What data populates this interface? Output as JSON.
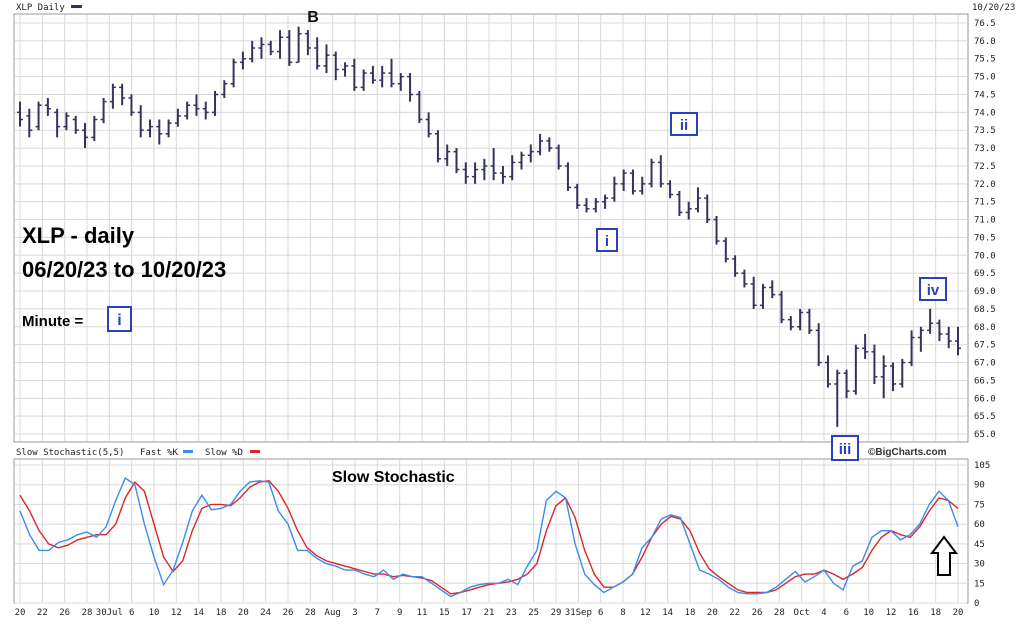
{
  "header": {
    "title": "XLP Daily",
    "date": "10/20/23",
    "stochastic_label": "Slow Stochastic(5,5)",
    "fast_label": "Fast %K",
    "slow_label": "Slow %D",
    "credit": "©BigCharts.com"
  },
  "annotations": {
    "title_line1": "XLP - daily",
    "title_line2": "06/20/23 to 10/20/23",
    "minute_label": "Minute =",
    "minute_box": "i",
    "wave_B": "B",
    "wave_i": "i",
    "wave_ii": "ii",
    "wave_iii": "iii",
    "wave_iv": "iv",
    "stoch_title": "Slow Stochastic"
  },
  "colors": {
    "bars": "#33335c",
    "fast": "#3d8bef",
    "slow": "#d9262a",
    "wave_box": "#2b3fc4",
    "grid": "#d8d8d8"
  },
  "chart_data": [
    {
      "type": "ohlc",
      "title": "XLP Daily",
      "price_range": [
        65.0,
        76.5
      ],
      "price_ticks": [
        "76.5",
        "76.0",
        "75.5",
        "75.0",
        "74.5",
        "74.0",
        "73.5",
        "73.0",
        "72.5",
        "72.0",
        "71.5",
        "71.0",
        "70.5",
        "70.0",
        "69.5",
        "69.0",
        "68.5",
        "68.0",
        "67.5",
        "67.0",
        "66.5",
        "66.0",
        "65.5",
        "65.0"
      ],
      "x_tick_labels": [
        "20",
        "22",
        "26",
        "28",
        "30Jul",
        "6",
        "10",
        "12",
        "14",
        "18",
        "20",
        "24",
        "26",
        "28",
        "Aug",
        "3",
        "7",
        "9",
        "11",
        "15",
        "17",
        "21",
        "23",
        "25",
        "29",
        "31Sep",
        "6",
        "8",
        "12",
        "14",
        "18",
        "20",
        "22",
        "26",
        "28",
        "Oct",
        "4",
        "6",
        "10",
        "12",
        "16",
        "18",
        "20"
      ],
      "grid": true,
      "bars": [
        {
          "o": 74.0,
          "h": 74.3,
          "l": 73.6,
          "c": 73.8
        },
        {
          "o": 73.9,
          "h": 74.1,
          "l": 73.3,
          "c": 73.5
        },
        {
          "o": 73.6,
          "h": 74.3,
          "l": 73.5,
          "c": 74.2
        },
        {
          "o": 74.2,
          "h": 74.4,
          "l": 73.9,
          "c": 74.1
        },
        {
          "o": 74.0,
          "h": 74.1,
          "l": 73.3,
          "c": 73.6
        },
        {
          "o": 73.6,
          "h": 74.0,
          "l": 73.5,
          "c": 73.9
        },
        {
          "o": 73.8,
          "h": 73.9,
          "l": 73.4,
          "c": 73.5
        },
        {
          "o": 73.5,
          "h": 73.7,
          "l": 73.0,
          "c": 73.3
        },
        {
          "o": 73.3,
          "h": 73.9,
          "l": 73.2,
          "c": 73.8
        },
        {
          "o": 73.8,
          "h": 74.4,
          "l": 73.7,
          "c": 74.3
        },
        {
          "o": 74.3,
          "h": 74.8,
          "l": 74.1,
          "c": 74.7
        },
        {
          "o": 74.7,
          "h": 74.8,
          "l": 74.2,
          "c": 74.4
        },
        {
          "o": 74.4,
          "h": 74.5,
          "l": 73.9,
          "c": 74.0
        },
        {
          "o": 74.0,
          "h": 74.2,
          "l": 73.3,
          "c": 73.5
        },
        {
          "o": 73.5,
          "h": 73.8,
          "l": 73.3,
          "c": 73.6
        },
        {
          "o": 73.6,
          "h": 73.8,
          "l": 73.1,
          "c": 73.4
        },
        {
          "o": 73.4,
          "h": 73.8,
          "l": 73.3,
          "c": 73.7
        },
        {
          "o": 73.7,
          "h": 74.1,
          "l": 73.6,
          "c": 73.9
        },
        {
          "o": 73.9,
          "h": 74.3,
          "l": 73.8,
          "c": 74.2
        },
        {
          "o": 74.2,
          "h": 74.5,
          "l": 73.9,
          "c": 74.1
        },
        {
          "o": 74.1,
          "h": 74.3,
          "l": 73.8,
          "c": 74.0
        },
        {
          "o": 74.0,
          "h": 74.6,
          "l": 73.9,
          "c": 74.5
        },
        {
          "o": 74.5,
          "h": 74.9,
          "l": 74.4,
          "c": 74.8
        },
        {
          "o": 74.8,
          "h": 75.5,
          "l": 74.7,
          "c": 75.4
        },
        {
          "o": 75.4,
          "h": 75.7,
          "l": 75.2,
          "c": 75.5
        },
        {
          "o": 75.5,
          "h": 76.0,
          "l": 75.4,
          "c": 75.8
        },
        {
          "o": 75.8,
          "h": 76.1,
          "l": 75.5,
          "c": 75.9
        },
        {
          "o": 75.9,
          "h": 76.0,
          "l": 75.6,
          "c": 75.7
        },
        {
          "o": 75.7,
          "h": 76.3,
          "l": 75.5,
          "c": 76.1
        },
        {
          "o": 76.1,
          "h": 76.3,
          "l": 75.3,
          "c": 75.4
        },
        {
          "o": 75.4,
          "h": 76.4,
          "l": 75.4,
          "c": 76.2
        },
        {
          "o": 76.2,
          "h": 76.3,
          "l": 75.6,
          "c": 75.8
        },
        {
          "o": 75.8,
          "h": 76.1,
          "l": 75.2,
          "c": 75.3
        },
        {
          "o": 75.3,
          "h": 75.9,
          "l": 75.1,
          "c": 75.6
        },
        {
          "o": 75.6,
          "h": 75.7,
          "l": 74.9,
          "c": 75.2
        },
        {
          "o": 75.2,
          "h": 75.4,
          "l": 75.0,
          "c": 75.3
        },
        {
          "o": 75.3,
          "h": 75.5,
          "l": 74.6,
          "c": 74.7
        },
        {
          "o": 74.7,
          "h": 75.2,
          "l": 74.6,
          "c": 75.1
        },
        {
          "o": 75.1,
          "h": 75.3,
          "l": 74.8,
          "c": 74.9
        },
        {
          "o": 74.9,
          "h": 75.3,
          "l": 74.7,
          "c": 75.1
        },
        {
          "o": 75.1,
          "h": 75.5,
          "l": 74.7,
          "c": 74.8
        },
        {
          "o": 74.8,
          "h": 75.1,
          "l": 74.6,
          "c": 75.0
        },
        {
          "o": 75.0,
          "h": 75.1,
          "l": 74.3,
          "c": 74.5
        },
        {
          "o": 74.5,
          "h": 74.6,
          "l": 73.7,
          "c": 73.8
        },
        {
          "o": 73.8,
          "h": 74.0,
          "l": 73.3,
          "c": 73.4
        },
        {
          "o": 73.4,
          "h": 73.5,
          "l": 72.6,
          "c": 72.7
        },
        {
          "o": 72.7,
          "h": 73.1,
          "l": 72.5,
          "c": 72.9
        },
        {
          "o": 72.9,
          "h": 73.0,
          "l": 72.3,
          "c": 72.4
        },
        {
          "o": 72.4,
          "h": 72.6,
          "l": 72.0,
          "c": 72.2
        },
        {
          "o": 72.2,
          "h": 72.6,
          "l": 72.0,
          "c": 72.4
        },
        {
          "o": 72.4,
          "h": 72.7,
          "l": 72.1,
          "c": 72.5
        },
        {
          "o": 72.5,
          "h": 73.0,
          "l": 72.1,
          "c": 72.3
        },
        {
          "o": 72.3,
          "h": 72.5,
          "l": 72.0,
          "c": 72.2
        },
        {
          "o": 72.2,
          "h": 72.8,
          "l": 72.1,
          "c": 72.6
        },
        {
          "o": 72.6,
          "h": 72.9,
          "l": 72.4,
          "c": 72.8
        },
        {
          "o": 72.8,
          "h": 73.1,
          "l": 72.6,
          "c": 72.9
        },
        {
          "o": 72.9,
          "h": 73.4,
          "l": 72.8,
          "c": 73.2
        },
        {
          "o": 73.2,
          "h": 73.3,
          "l": 72.9,
          "c": 73.0
        },
        {
          "o": 73.0,
          "h": 73.1,
          "l": 72.4,
          "c": 72.5
        },
        {
          "o": 72.5,
          "h": 72.6,
          "l": 71.8,
          "c": 71.9
        },
        {
          "o": 71.9,
          "h": 72.0,
          "l": 71.3,
          "c": 71.4
        },
        {
          "o": 71.4,
          "h": 71.6,
          "l": 71.2,
          "c": 71.3
        },
        {
          "o": 71.3,
          "h": 71.6,
          "l": 71.2,
          "c": 71.5
        },
        {
          "o": 71.5,
          "h": 71.7,
          "l": 71.3,
          "c": 71.6
        },
        {
          "o": 71.6,
          "h": 72.2,
          "l": 71.5,
          "c": 72.0
        },
        {
          "o": 72.0,
          "h": 72.4,
          "l": 71.8,
          "c": 72.3
        },
        {
          "o": 72.3,
          "h": 72.4,
          "l": 71.7,
          "c": 71.8
        },
        {
          "o": 71.8,
          "h": 72.2,
          "l": 71.7,
          "c": 72.0
        },
        {
          "o": 72.0,
          "h": 72.7,
          "l": 71.9,
          "c": 72.6
        },
        {
          "o": 72.6,
          "h": 72.8,
          "l": 71.9,
          "c": 72.0
        },
        {
          "o": 72.0,
          "h": 72.1,
          "l": 71.6,
          "c": 71.7
        },
        {
          "o": 71.7,
          "h": 71.8,
          "l": 71.1,
          "c": 71.2
        },
        {
          "o": 71.2,
          "h": 71.5,
          "l": 71.0,
          "c": 71.3
        },
        {
          "o": 71.3,
          "h": 71.9,
          "l": 71.2,
          "c": 71.6
        },
        {
          "o": 71.6,
          "h": 71.7,
          "l": 70.9,
          "c": 71.0
        },
        {
          "o": 71.0,
          "h": 71.1,
          "l": 70.3,
          "c": 70.4
        },
        {
          "o": 70.4,
          "h": 70.5,
          "l": 69.8,
          "c": 69.9
        },
        {
          "o": 69.9,
          "h": 70.0,
          "l": 69.4,
          "c": 69.5
        },
        {
          "o": 69.5,
          "h": 69.6,
          "l": 69.1,
          "c": 69.2
        },
        {
          "o": 69.2,
          "h": 69.4,
          "l": 68.5,
          "c": 68.6
        },
        {
          "o": 68.6,
          "h": 69.2,
          "l": 68.5,
          "c": 69.1
        },
        {
          "o": 69.1,
          "h": 69.3,
          "l": 68.8,
          "c": 68.9
        },
        {
          "o": 68.9,
          "h": 69.0,
          "l": 68.1,
          "c": 68.2
        },
        {
          "o": 68.2,
          "h": 68.3,
          "l": 67.9,
          "c": 68.0
        },
        {
          "o": 68.0,
          "h": 68.5,
          "l": 67.9,
          "c": 68.4
        },
        {
          "o": 68.4,
          "h": 68.5,
          "l": 67.8,
          "c": 67.9
        },
        {
          "o": 67.9,
          "h": 68.1,
          "l": 66.9,
          "c": 67.0
        },
        {
          "o": 67.0,
          "h": 67.2,
          "l": 66.3,
          "c": 66.4
        },
        {
          "o": 66.4,
          "h": 66.8,
          "l": 65.2,
          "c": 66.7
        },
        {
          "o": 66.7,
          "h": 66.8,
          "l": 66.0,
          "c": 66.2
        },
        {
          "o": 66.2,
          "h": 67.5,
          "l": 66.1,
          "c": 67.4
        },
        {
          "o": 67.4,
          "h": 67.8,
          "l": 67.1,
          "c": 67.3
        },
        {
          "o": 67.3,
          "h": 67.5,
          "l": 66.4,
          "c": 66.6
        },
        {
          "o": 66.6,
          "h": 67.2,
          "l": 66.0,
          "c": 66.9
        },
        {
          "o": 66.9,
          "h": 67.0,
          "l": 66.2,
          "c": 66.4
        },
        {
          "o": 66.4,
          "h": 67.1,
          "l": 66.3,
          "c": 67.0
        },
        {
          "o": 67.0,
          "h": 67.9,
          "l": 66.9,
          "c": 67.7
        },
        {
          "o": 67.7,
          "h": 68.0,
          "l": 67.3,
          "c": 67.9
        },
        {
          "o": 67.9,
          "h": 68.5,
          "l": 67.8,
          "c": 68.1
        },
        {
          "o": 68.1,
          "h": 68.2,
          "l": 67.6,
          "c": 67.8
        },
        {
          "o": 67.8,
          "h": 68.0,
          "l": 67.4,
          "c": 67.6
        },
        {
          "o": 67.6,
          "h": 68.0,
          "l": 67.2,
          "c": 67.4
        }
      ]
    },
    {
      "type": "line",
      "title": "Slow Stochastic",
      "ylim": [
        0,
        105
      ],
      "y_ticks": [
        "105",
        "90",
        "75",
        "60",
        "45",
        "30",
        "15",
        "0"
      ],
      "series": [
        {
          "name": "Fast %K",
          "values": [
            70,
            52,
            40,
            40,
            46,
            48,
            52,
            54,
            50,
            58,
            78,
            95,
            90,
            60,
            35,
            14,
            25,
            46,
            70,
            82,
            71,
            72,
            75,
            85,
            92,
            93,
            92,
            70,
            60,
            40,
            40,
            34,
            30,
            28,
            25,
            25,
            22,
            20,
            25,
            18,
            22,
            20,
            20,
            15,
            10,
            5,
            8,
            12,
            14,
            15,
            15,
            18,
            14,
            28,
            40,
            78,
            85,
            80,
            45,
            22,
            14,
            8,
            12,
            16,
            22,
            42,
            50,
            64,
            67,
            65,
            45,
            25,
            22,
            18,
            12,
            8,
            7,
            7,
            8,
            12,
            18,
            24,
            16,
            20,
            25,
            15,
            10,
            28,
            32,
            50,
            55,
            55,
            48,
            52,
            60,
            75,
            85,
            78,
            58
          ]
        },
        {
          "name": "Slow %D",
          "values": [
            82,
            70,
            55,
            45,
            42,
            44,
            48,
            50,
            52,
            52,
            60,
            80,
            92,
            85,
            60,
            35,
            24,
            32,
            55,
            72,
            75,
            75,
            74,
            80,
            88,
            92,
            93,
            85,
            72,
            55,
            42,
            36,
            32,
            30,
            28,
            26,
            24,
            22,
            22,
            20,
            21,
            20,
            19,
            17,
            12,
            7,
            8,
            10,
            12,
            14,
            15,
            16,
            18,
            22,
            30,
            55,
            74,
            80,
            65,
            40,
            22,
            12,
            12,
            16,
            22,
            35,
            50,
            60,
            66,
            64,
            55,
            38,
            26,
            20,
            15,
            10,
            8,
            8,
            8,
            10,
            15,
            20,
            22,
            22,
            25,
            22,
            18,
            22,
            27,
            40,
            50,
            55,
            52,
            50,
            58,
            70,
            80,
            78,
            72
          ]
        }
      ]
    }
  ]
}
